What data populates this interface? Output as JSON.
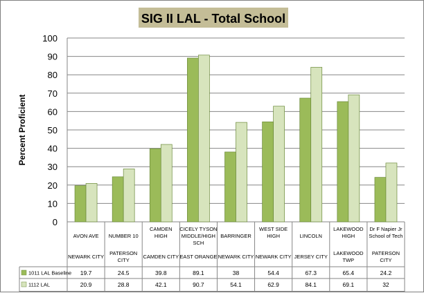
{
  "chart_data": {
    "type": "bar",
    "title": "SIG II LAL - Total School",
    "ylabel": "Percent Proficient",
    "xlabel": "",
    "ylim": [
      0,
      100
    ],
    "yticks": [
      0,
      10,
      20,
      30,
      40,
      50,
      60,
      70,
      80,
      90,
      100
    ],
    "grid": "horizontal",
    "legend": "data-table",
    "categories": [
      {
        "school": [
          "AVON AVE"
        ],
        "district": [
          "NEWARK CITY"
        ]
      },
      {
        "school": [
          "NUMBER 10"
        ],
        "district": [
          "PATERSON",
          "CITY"
        ]
      },
      {
        "school": [
          "CAMDEN",
          "HIGH"
        ],
        "district": [
          "CAMDEN CITY"
        ]
      },
      {
        "school": [
          "CICELY TYSON",
          "MIDDLE/HIGH",
          "SCH"
        ],
        "district": [
          "EAST ORANGE"
        ]
      },
      {
        "school": [
          "BARRINGER"
        ],
        "district": [
          "NEWARK CITY"
        ]
      },
      {
        "school": [
          "WEST SIDE",
          "HIGH"
        ],
        "district": [
          "NEWARK CITY"
        ]
      },
      {
        "school": [
          "LINCOLN"
        ],
        "district": [
          "JERSEY CITY"
        ]
      },
      {
        "school": [
          "LAKEWOOD",
          "HIGH"
        ],
        "district": [
          "LAKEWOOD",
          "TWP"
        ]
      },
      {
        "school": [
          "Dr F Napier Jr",
          "School of Tech"
        ],
        "district": [
          "PATERSON",
          "CITY"
        ]
      }
    ],
    "series": [
      {
        "name": "1011 LAL Baseline",
        "values": [
          19.7,
          24.5,
          39.8,
          89.1,
          38,
          54.4,
          67.3,
          65.4,
          24.2
        ],
        "labels": [
          "19.7",
          "24.5",
          "39.8",
          "89.1",
          "38",
          "54.4",
          "67.3",
          "65.4",
          "24.2"
        ],
        "color": "#9bbb59"
      },
      {
        "name": "1112 LAL",
        "values": [
          20.9,
          28.8,
          42.1,
          90.7,
          54.1,
          62.9,
          84.1,
          69.1,
          32
        ],
        "labels": [
          "20.9",
          "28.8",
          "42.1",
          "90.7",
          "54.1",
          "62.9",
          "84.1",
          "69.1",
          "32"
        ],
        "color": "#d7e4bd"
      }
    ]
  }
}
